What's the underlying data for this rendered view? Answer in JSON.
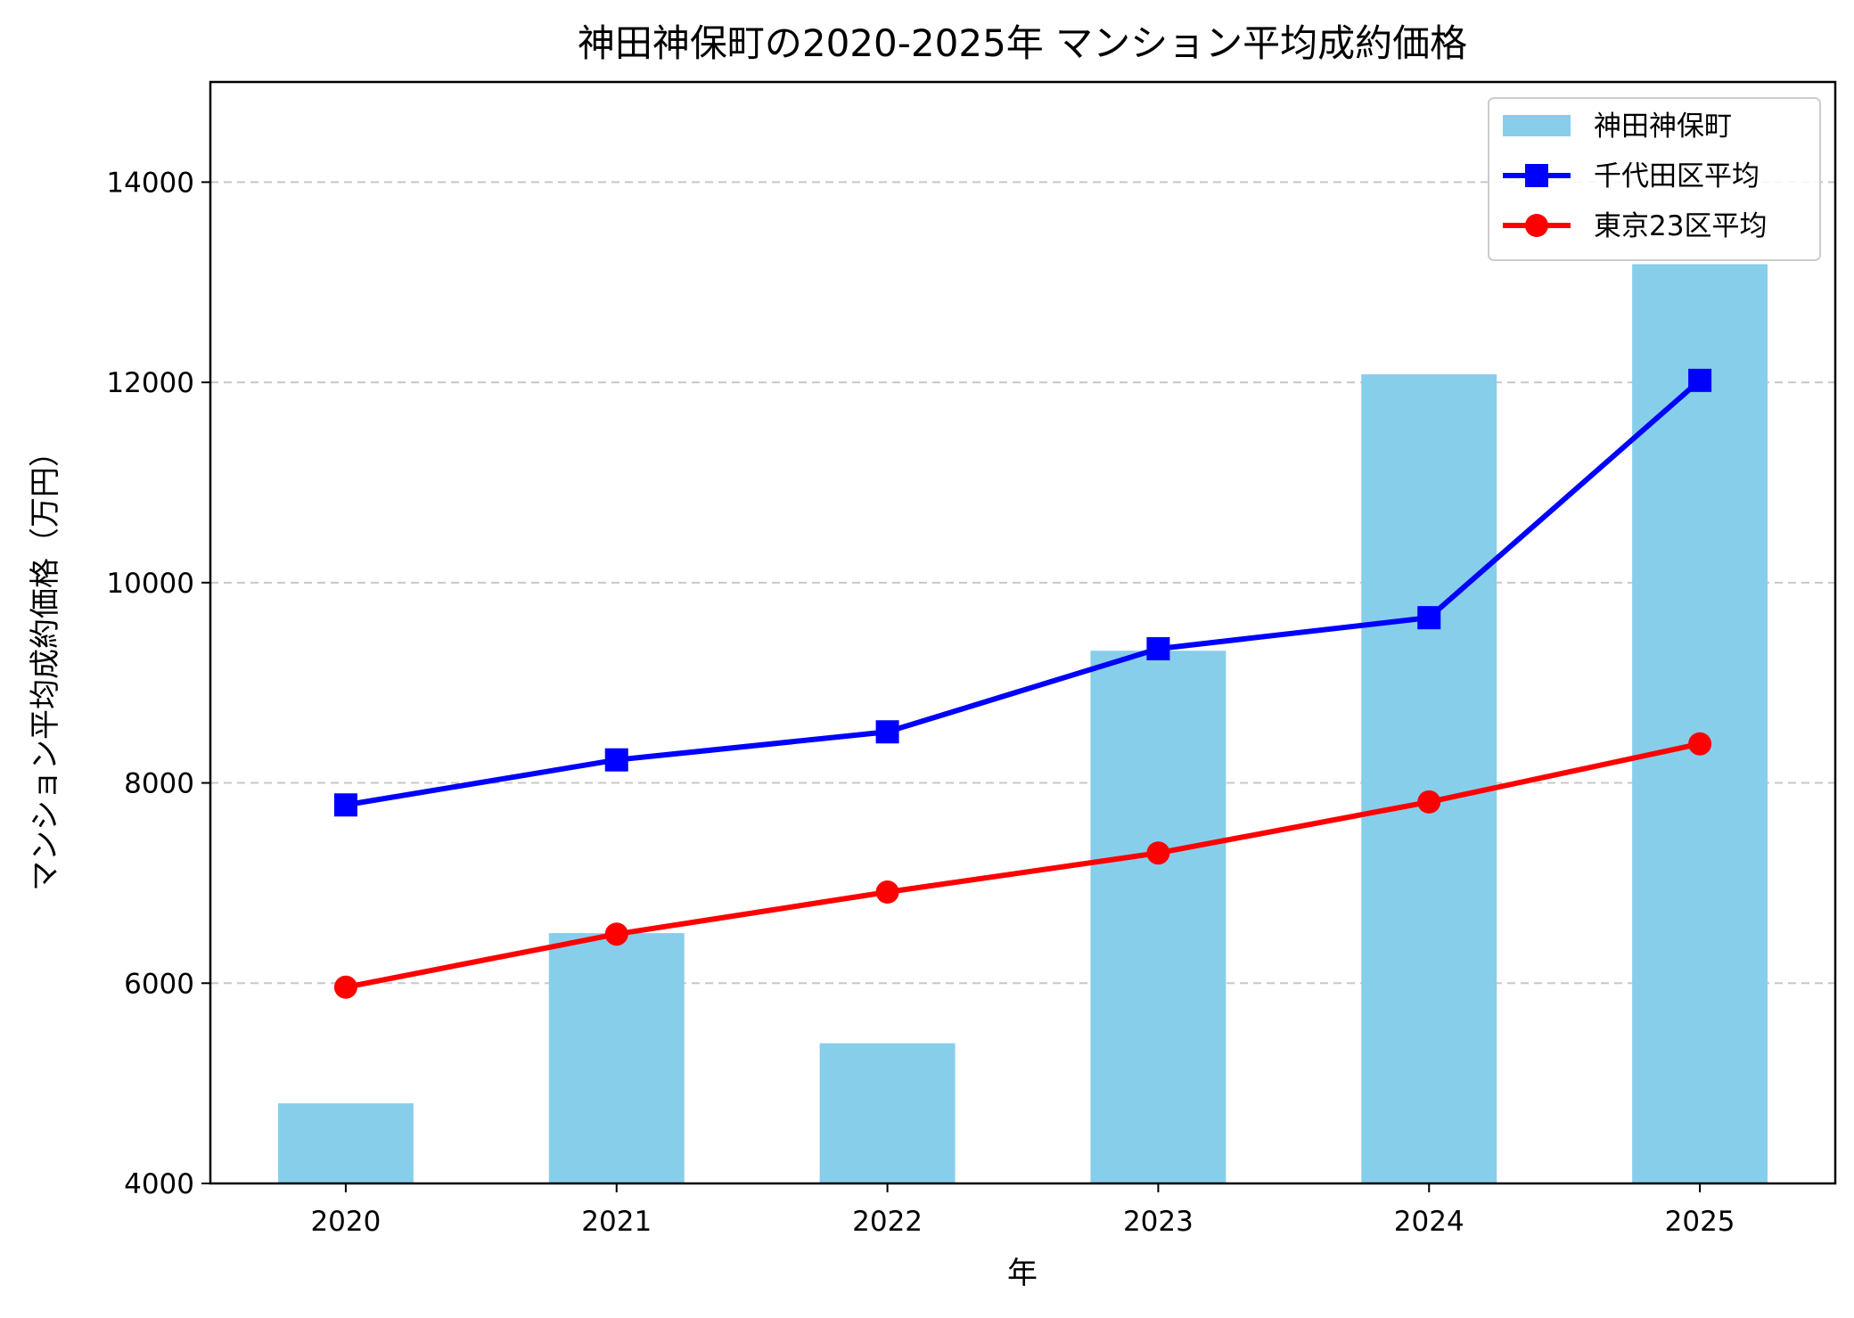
{
  "chart_data": {
    "type": "bar",
    "title": "神田神保町の2020-2025年 マンション平均成約価格",
    "xlabel": "年",
    "ylabel": "マンション平均成約価格（万円）",
    "categories": [
      "2020",
      "2021",
      "2022",
      "2023",
      "2024",
      "2025"
    ],
    "ylim": [
      4000,
      15000
    ],
    "yticks": [
      4000,
      6000,
      8000,
      10000,
      12000,
      14000
    ],
    "grid": "horizontal dashed",
    "legend_position": "top-right",
    "series": [
      {
        "name": "神田神保町",
        "type": "bar",
        "color": "#87ceeb",
        "values": [
          4800,
          6500,
          5400,
          9320,
          12080,
          13180
        ]
      },
      {
        "name": "千代田区平均",
        "type": "line",
        "marker": "square",
        "color": "#0000ff",
        "values": [
          7780,
          8230,
          8510,
          9340,
          9650,
          12020
        ]
      },
      {
        "name": "東京23区平均",
        "type": "line",
        "marker": "circle",
        "color": "#ff0000",
        "values": [
          5960,
          6490,
          6910,
          7300,
          7810,
          8390
        ]
      }
    ]
  }
}
